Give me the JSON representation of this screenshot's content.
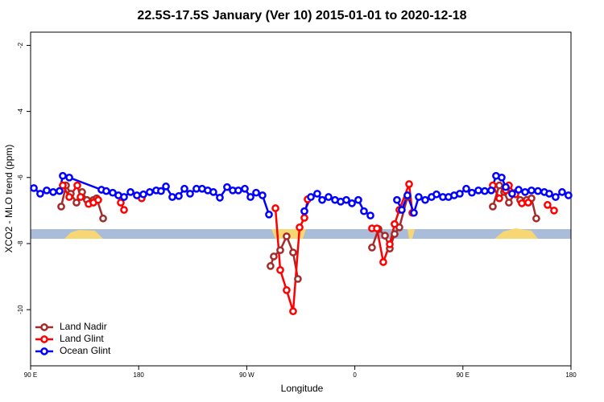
{
  "chart_data": {
    "type": "line",
    "title": "22.5S-17.5S January (Ver 10)   2015-01-01 to 2020-12-18",
    "xlabel": "Longitude",
    "ylabel": "XCO2 - MLO trend (ppm)",
    "xlim": [
      90,
      540
    ],
    "ylim": [
      -11.7,
      -1.6
    ],
    "xticks": [
      {
        "value": 90,
        "label": "90 E"
      },
      {
        "value": 180,
        "label": "180"
      },
      {
        "value": 270,
        "label": "90 W"
      },
      {
        "value": 360,
        "label": "0"
      },
      {
        "value": 450,
        "label": "90 E"
      },
      {
        "value": 540,
        "label": "180"
      }
    ],
    "yticks": [
      -2,
      -4,
      -6,
      -8,
      -10
    ],
    "legend": "bottom-left",
    "series": [
      {
        "name": "Land Nadir",
        "color": "#a52a2a",
        "x": [
          115.5,
          119.5,
          123.5,
          128.2,
          132.9,
          136.9,
          142.3,
          145.0,
          150.4,
          null,
          289.8,
          292.5,
          297.9,
          303.2,
          308.6,
          312.6,
          null,
          374.3,
          379.7,
          385.1,
          389.1,
          393.1,
          397.1,
          403.8,
          null,
          474.9,
          480.3,
          484.3,
          488.3,
          493.7,
          497.7,
          503.1,
          507.1,
          511.1
        ],
        "values": [
          -6.88,
          -6.24,
          -6.49,
          -6.76,
          -6.44,
          -6.68,
          -6.68,
          -6.63,
          -7.24,
          null,
          -8.68,
          -8.39,
          -8.2,
          -7.78,
          -8.27,
          -9.07,
          null,
          -8.12,
          -7.56,
          -7.76,
          -8.15,
          -7.71,
          -7.51,
          -6.59,
          null,
          -6.88,
          -6.24,
          -6.44,
          -6.76,
          -6.46,
          -6.68,
          -6.68,
          -6.63,
          -7.24
        ]
      },
      {
        "name": "Land Glint",
        "color": "#ff0000",
        "x": [
          116.8,
          122.2,
          128.9,
          131.6,
          138.3,
          142.3,
          146.3,
          null,
          165.1,
          167.8,
          null,
          182.5,
          null,
          293.9,
          297.9,
          303.2,
          308.6,
          314.0,
          318.0,
          320.7,
          null,
          374.3,
          378.4,
          383.7,
          389.1,
          393.1,
          397.1,
          405.2,
          407.9,
          null,
          474.9,
          480.3,
          485.7,
          488.3,
          493.7,
          499.1,
          504.4,
          null,
          520.5,
          525.9
        ],
        "values": [
          -6.24,
          -6.59,
          -6.24,
          -6.59,
          -6.8,
          -6.76,
          -6.68,
          null,
          -6.76,
          -6.98,
          null,
          -6.63,
          null,
          -6.93,
          -8.8,
          -9.41,
          -10.05,
          -7.51,
          -7.22,
          -6.66,
          null,
          -7.54,
          -7.54,
          -8.56,
          -8.02,
          -7.41,
          -6.98,
          -6.2,
          -7.07,
          null,
          -6.24,
          -6.63,
          -6.39,
          -6.24,
          -6.51,
          -6.78,
          -6.76,
          null,
          -6.83,
          -7.0
        ]
      },
      {
        "name": "Ocean Glint",
        "color": "#0000ff",
        "x": [
          92.7,
          98.0,
          103.4,
          108.8,
          114.1,
          116.8,
          122.2,
          149.0,
          153.0,
          158.4,
          163.1,
          167.8,
          173.2,
          178.5,
          183.9,
          189.2,
          194.6,
          198.6,
          202.7,
          208.0,
          213.4,
          218.1,
          222.8,
          228.1,
          232.8,
          237.5,
          242.2,
          247.6,
          253.6,
          258.3,
          263.0,
          268.4,
          273.1,
          277.8,
          283.1,
          288.5,
          null,
          318.0,
          323.4,
          328.7,
          332.8,
          338.1,
          343.5,
          348.2,
          352.9,
          357.6,
          362.9,
          367.6,
          373.0,
          null,
          395.1,
          399.1,
          403.8,
          409.2,
          413.2,
          418.6,
          423.9,
          428.0,
          433.3,
          438.0,
          442.7,
          447.4,
          452.8,
          457.5,
          462.9,
          468.2,
          473.6,
          477.6,
          482.3,
          485.7,
          491.0,
          496.4,
          501.8,
          507.1,
          512.5,
          517.8,
          521.9,
          527.2,
          532.6,
          537.9
        ],
        "values": [
          -6.32,
          -6.49,
          -6.39,
          -6.44,
          -6.41,
          -5.95,
          -6.0,
          -6.37,
          -6.41,
          -6.46,
          -6.54,
          -6.59,
          -6.44,
          -6.54,
          -6.51,
          -6.44,
          -6.39,
          -6.41,
          -6.27,
          -6.59,
          -6.56,
          -6.34,
          -6.49,
          -6.34,
          -6.34,
          -6.39,
          -6.44,
          -6.61,
          -6.29,
          -6.39,
          -6.39,
          -6.34,
          -6.59,
          -6.46,
          -6.54,
          -7.12,
          null,
          -7.02,
          -6.59,
          -6.49,
          -6.68,
          -6.59,
          -6.68,
          -6.73,
          -6.68,
          -6.78,
          -6.68,
          -7.02,
          -7.15,
          null,
          -6.68,
          -6.98,
          -6.54,
          -7.07,
          -6.59,
          -6.68,
          -6.59,
          -6.51,
          -6.59,
          -6.59,
          -6.54,
          -6.49,
          -6.34,
          -6.46,
          -6.39,
          -6.41,
          -6.39,
          -5.95,
          -6.0,
          -6.29,
          -6.49,
          -6.37,
          -6.44,
          -6.39,
          -6.41,
          -6.44,
          -6.49,
          -6.59,
          -6.44,
          -6.54
        ]
      }
    ]
  }
}
